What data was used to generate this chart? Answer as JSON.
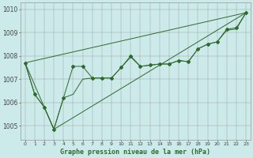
{
  "title": "Graphe pression niveau de la mer (hPa)",
  "bg_color": "#cceaea",
  "line_color": "#2d6a2d",
  "xlim": [
    -0.5,
    23.5
  ],
  "ylim": [
    1004.4,
    1010.3
  ],
  "yticks": [
    1005,
    1006,
    1007,
    1008,
    1009,
    1010
  ],
  "xticks": [
    0,
    1,
    2,
    3,
    4,
    5,
    6,
    7,
    8,
    9,
    10,
    11,
    12,
    13,
    14,
    15,
    16,
    17,
    18,
    19,
    20,
    21,
    22,
    23
  ],
  "series_lines": [
    {
      "x": [
        0,
        1,
        2,
        3,
        4,
        5,
        6,
        7,
        8,
        9,
        10,
        11,
        12,
        13,
        14,
        15,
        16,
        17,
        18,
        19,
        20,
        21,
        22,
        23
      ],
      "y": [
        1007.7,
        1006.35,
        1005.8,
        1004.85,
        1006.2,
        1007.55,
        1007.55,
        1007.05,
        1007.05,
        1007.05,
        1007.5,
        1008.0,
        1007.55,
        1007.6,
        1007.65,
        1007.65,
        1007.8,
        1007.75,
        1008.3,
        1008.5,
        1008.6,
        1009.15,
        1009.2,
        1009.85
      ],
      "marker": true
    },
    {
      "x": [
        0,
        1,
        2,
        3,
        4,
        5,
        6,
        7,
        8,
        9,
        10,
        11,
        12,
        13,
        14,
        15,
        16,
        17,
        18,
        19,
        20,
        21,
        22,
        23
      ],
      "y": [
        1007.7,
        1006.35,
        1005.8,
        1004.85,
        1006.2,
        1006.3,
        1007.55,
        1007.05,
        1007.05,
        1007.05,
        1007.5,
        1007.95,
        1007.55,
        1007.6,
        1007.65,
        1007.65,
        1007.8,
        1007.75,
        1008.3,
        1008.5,
        1008.6,
        1009.1,
        1009.15,
        1009.85
      ],
      "marker": false
    },
    {
      "x": [
        0,
        3,
        6,
        23
      ],
      "y": [
        1007.7,
        1004.85,
        1007.55,
        1009.85
      ],
      "marker": false
    },
    {
      "x": [
        0,
        3,
        23
      ],
      "y": [
        1007.7,
        1004.85,
        1009.85
      ],
      "marker": false
    }
  ],
  "extra_lines": [
    {
      "x": [
        0,
        1,
        2,
        3
      ],
      "y": [
        1007.7,
        1006.35,
        1005.8,
        1004.85
      ]
    },
    {
      "x": [
        3,
        4,
        5,
        6
      ],
      "y": [
        1004.85,
        1006.2,
        1007.55,
        1007.55
      ]
    },
    {
      "x": [
        6,
        7,
        8,
        9,
        10,
        11,
        12,
        13,
        14,
        15,
        16,
        17,
        18,
        19,
        20,
        21,
        22,
        23
      ],
      "y": [
        1007.55,
        1007.05,
        1007.05,
        1007.05,
        1007.5,
        1008.0,
        1007.55,
        1007.6,
        1007.65,
        1007.65,
        1007.8,
        1007.75,
        1008.3,
        1008.5,
        1008.6,
        1009.15,
        1009.2,
        1009.85
      ]
    }
  ]
}
